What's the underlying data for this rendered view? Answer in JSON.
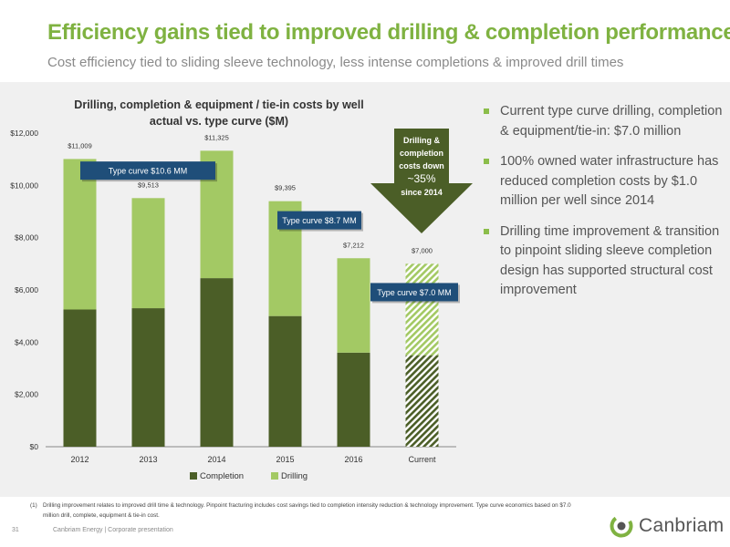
{
  "slide": {
    "title": "Efficiency gains tied to improved drilling & completion performance",
    "subtitle": "Cost efficiency tied to sliding sleeve technology, less intense completions & improved drill times",
    "page_number": "31",
    "footer": "Canbriam Energy  |  Corporate presentation",
    "logo_text": "Canbriam",
    "footnote_num": "(1)",
    "footnote": "Drilling improvement relates to improved drill time & technology.  Pinpoint fracturing includes cost savings tied to completion intensity reduction & technology improvement. Type curve economics based on $7.0 million drill, complete, equipment & tie-in cost."
  },
  "bullets": [
    "Current type curve drilling, completion & equipment/tie-in: $7.0 million",
    "100% owned water infrastructure has reduced completion costs by $1.0 million per well since 2014",
    "Drilling time improvement & transition to pinpoint sliding sleeve completion design has supported structural cost improvement"
  ],
  "colors": {
    "completion": "#4b5e27",
    "drilling": "#a3c964",
    "title": "#7fb241",
    "callout": "#1f4e79",
    "arrow": "#4b5e27"
  },
  "chart_data": {
    "type": "bar",
    "stacked": true,
    "title": "Drilling, completion & equipment / tie-in costs by well",
    "subtitle": "actual vs. type curve ($M)",
    "categories": [
      "2012",
      "2013",
      "2014",
      "2015",
      "2016",
      "Current"
    ],
    "series": [
      {
        "name": "Completion",
        "values": [
          5250,
          5300,
          6450,
          5000,
          3600,
          3500
        ]
      },
      {
        "name": "Drilling",
        "values": [
          5759,
          4213,
          4875,
          4395,
          3612,
          3500
        ]
      }
    ],
    "totals": [
      "$11,009",
      "$9,513",
      "$11,325",
      "$9,395",
      "$7,212",
      "$7,000"
    ],
    "hatched_category": "Current",
    "yticks": [
      "$0",
      "$2,000",
      "$4,000",
      "$6,000",
      "$8,000",
      "$10,000",
      "$12,000"
    ],
    "ylim": [
      0,
      12000
    ],
    "legend_position": "bottom",
    "annotations": [
      {
        "text": "Type curve $10.6 MM",
        "year": "2012-2014",
        "value": 10600
      },
      {
        "text": "Type curve $8.7 MM",
        "year": "2015",
        "value": 8700
      },
      {
        "text": "Type curve $7.0 MM",
        "year": "Current",
        "value": 7000
      }
    ],
    "arrow_label": [
      "Drilling &",
      "completion",
      "costs down",
      "~35%",
      "since 2014"
    ]
  }
}
